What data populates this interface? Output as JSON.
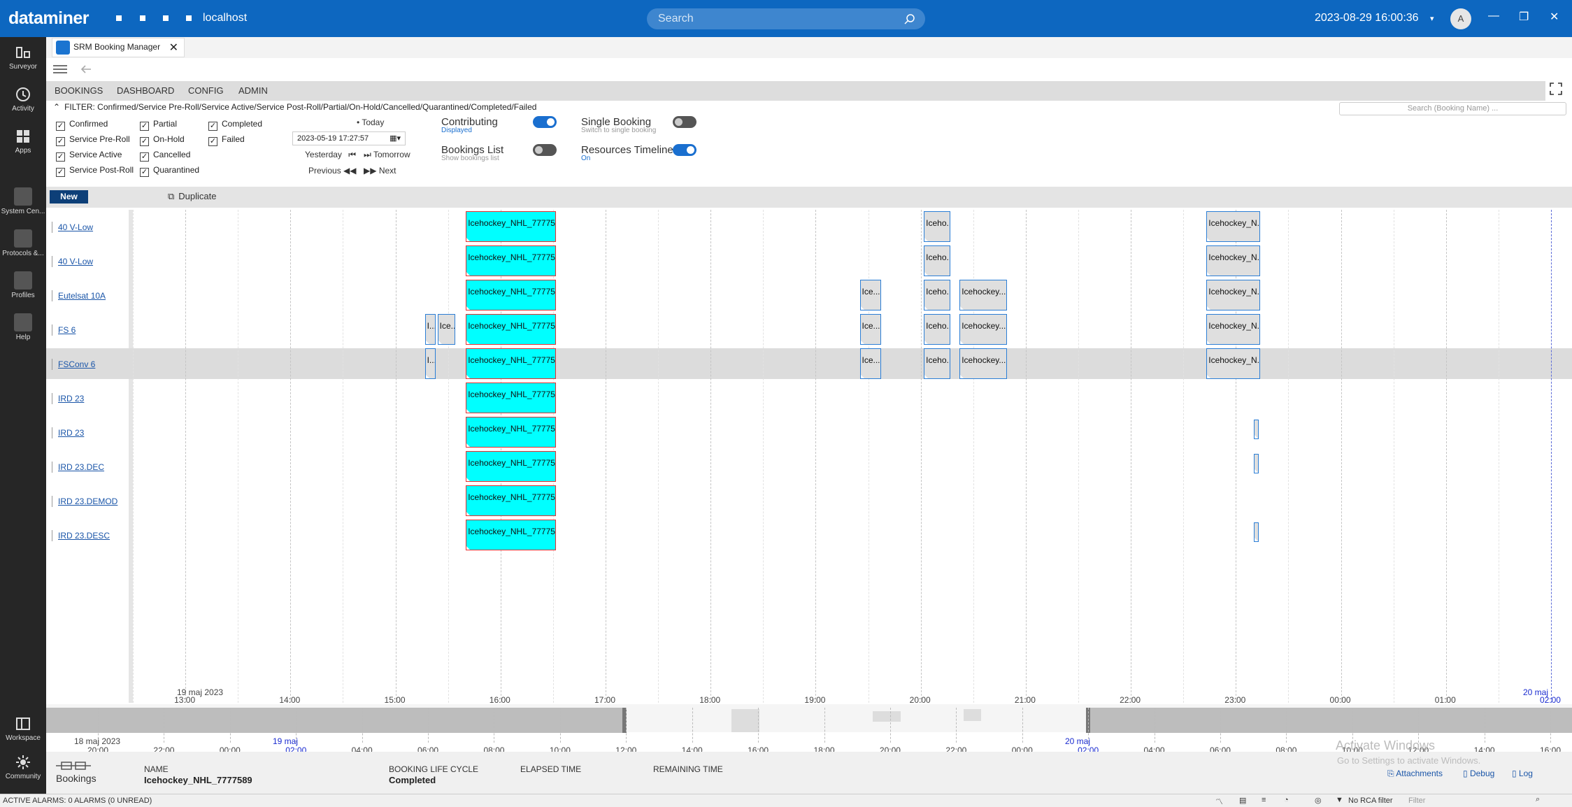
{
  "topbar": {
    "brand": "dataminer",
    "host": "localhost",
    "search_placeholder": "Search",
    "datetime": "2023-08-29 16:00:36",
    "avatar": "A"
  },
  "nav": [
    {
      "label": "Surveyor"
    },
    {
      "label": "Activity"
    },
    {
      "label": "Apps"
    },
    {
      "label": "System Cen..."
    },
    {
      "label": "Protocols &..."
    },
    {
      "label": "Profiles"
    },
    {
      "label": "Help"
    },
    {
      "label": "Workspace"
    },
    {
      "label": "Community"
    }
  ],
  "app_tab": {
    "title": "SRM Booking Manager"
  },
  "tabs": [
    "BOOKINGS",
    "DASHBOARD",
    "CONFIG",
    "ADMIN"
  ],
  "filter": {
    "text": "FILTER: Confirmed/Service Pre-Roll/Service Active/Service Post-Roll/Partial/On-Hold/Cancelled/Quarantined/Completed/Failed",
    "search_placeholder": "Search (Booking Name) ..."
  },
  "checkboxes": [
    {
      "label": "Confirmed",
      "checked": true
    },
    {
      "label": "Service Pre-Roll",
      "checked": true
    },
    {
      "label": "Service Active",
      "checked": true
    },
    {
      "label": "Service Post-Roll",
      "checked": true
    },
    {
      "label": "Partial",
      "checked": true
    },
    {
      "label": "On-Hold",
      "checked": true
    },
    {
      "label": "Cancelled",
      "checked": true
    },
    {
      "label": "Quarantined",
      "checked": true
    },
    {
      "label": "Completed",
      "checked": true
    },
    {
      "label": "Failed",
      "checked": true
    }
  ],
  "date_nav": {
    "today": "Today",
    "date": "2023-05-19 17:27:57",
    "yesterday": "Yesterday",
    "tomorrow": "Tomorrow",
    "previous": "Previous",
    "next": "Next"
  },
  "toggles": {
    "contributing": {
      "label": "Contributing",
      "sub": "Displayed",
      "on": true
    },
    "single_booking": {
      "label": "Single Booking",
      "sub": "Switch to single booking",
      "on": false
    },
    "bookings_list": {
      "label": "Bookings List",
      "sub": "Show bookings list",
      "on": false
    },
    "resources_timeline": {
      "label": "Resources Timeline",
      "sub": "On",
      "on": true
    }
  },
  "actions": {
    "new": "New",
    "duplicate": "Duplicate"
  },
  "resources": [
    "40 V-Low",
    "40 V-Low",
    "Eutelsat 10A",
    "FS 6",
    "FSConv 6",
    "IRD 23",
    "IRD 23",
    "IRD 23.DEC",
    "IRD 23.DEMOD",
    "IRD 23.DESC"
  ],
  "blocks": [
    {
      "row": 0,
      "s": 15.67,
      "e": 16.53,
      "label": "Icehockey_NHL_77775...",
      "kind": "cy"
    },
    {
      "row": 0,
      "s": 20.03,
      "e": 20.28,
      "label": "Iceho...",
      "kind": "gr"
    },
    {
      "row": 0,
      "s": 22.72,
      "e": 23.23,
      "label": "Icehockey_N...",
      "kind": "gr"
    },
    {
      "row": 1,
      "s": 15.67,
      "e": 16.53,
      "label": "Icehockey_NHL_77775...",
      "kind": "cy"
    },
    {
      "row": 1,
      "s": 20.03,
      "e": 20.28,
      "label": "Iceho...",
      "kind": "gr"
    },
    {
      "row": 1,
      "s": 22.72,
      "e": 23.23,
      "label": "Icehockey_N...",
      "kind": "gr"
    },
    {
      "row": 2,
      "s": 15.67,
      "e": 16.53,
      "label": "Icehockey_NHL_77775...",
      "kind": "cy"
    },
    {
      "row": 2,
      "s": 19.42,
      "e": 19.62,
      "label": "Ice...",
      "kind": "gr"
    },
    {
      "row": 2,
      "s": 20.03,
      "e": 20.28,
      "label": "Iceho...",
      "kind": "gr"
    },
    {
      "row": 2,
      "s": 20.37,
      "e": 20.82,
      "label": "Icehockey...",
      "kind": "gr"
    },
    {
      "row": 2,
      "s": 22.72,
      "e": 23.23,
      "label": "Icehockey_N...",
      "kind": "gr"
    },
    {
      "row": 3,
      "s": 15.28,
      "e": 15.38,
      "label": "I...",
      "kind": "gr"
    },
    {
      "row": 3,
      "s": 15.4,
      "e": 15.57,
      "label": "Ice...",
      "kind": "gr"
    },
    {
      "row": 3,
      "s": 15.67,
      "e": 16.53,
      "label": "Icehockey_NHL_77775...",
      "kind": "cy"
    },
    {
      "row": 3,
      "s": 19.42,
      "e": 19.62,
      "label": "Ice...",
      "kind": "gr"
    },
    {
      "row": 3,
      "s": 20.03,
      "e": 20.28,
      "label": "Iceho...",
      "kind": "gr"
    },
    {
      "row": 3,
      "s": 20.37,
      "e": 20.82,
      "label": "Icehockey...",
      "kind": "gr"
    },
    {
      "row": 3,
      "s": 22.72,
      "e": 23.23,
      "label": "Icehockey_N...",
      "kind": "gr"
    },
    {
      "row": 4,
      "s": 15.28,
      "e": 15.38,
      "label": "I...",
      "kind": "gr"
    },
    {
      "row": 4,
      "s": 15.67,
      "e": 16.53,
      "label": "Icehockey_NHL_77775...",
      "kind": "cy"
    },
    {
      "row": 4,
      "s": 19.42,
      "e": 19.62,
      "label": "Ice...",
      "kind": "gr"
    },
    {
      "row": 4,
      "s": 20.03,
      "e": 20.28,
      "label": "Iceho...",
      "kind": "gr"
    },
    {
      "row": 4,
      "s": 20.37,
      "e": 20.82,
      "label": "Icehockey...",
      "kind": "gr"
    },
    {
      "row": 4,
      "s": 22.72,
      "e": 23.23,
      "label": "Icehockey_N...",
      "kind": "gr"
    },
    {
      "row": 5,
      "s": 15.67,
      "e": 16.53,
      "label": "Icehockey_NHL_77775...",
      "kind": "cy"
    },
    {
      "row": 6,
      "s": 15.67,
      "e": 16.53,
      "label": "Icehockey_NHL_77775...",
      "kind": "cy"
    },
    {
      "row": 6,
      "s": 23.17,
      "e": 23.22,
      "label": "",
      "kind": "sm"
    },
    {
      "row": 7,
      "s": 15.67,
      "e": 16.53,
      "label": "Icehockey_NHL_77775...",
      "kind": "cy"
    },
    {
      "row": 7,
      "s": 23.17,
      "e": 23.22,
      "label": "",
      "kind": "sm"
    },
    {
      "row": 8,
      "s": 15.67,
      "e": 16.53,
      "label": "Icehockey_NHL_77775...",
      "kind": "cy"
    },
    {
      "row": 9,
      "s": 15.67,
      "e": 16.53,
      "label": "Icehockey_NHL_77775...",
      "kind": "cy"
    },
    {
      "row": 9,
      "s": 23.17,
      "e": 23.22,
      "label": "",
      "kind": "sm"
    }
  ],
  "highlight_row": 4,
  "axis": {
    "date_start": "19 maj 2023",
    "date_end": "20 maj",
    "ticks": [
      "13:00",
      "14:00",
      "15:00",
      "16:00",
      "17:00",
      "18:00",
      "19:00",
      "20:00",
      "21:00",
      "22:00",
      "23:00",
      "00:00",
      "01:00",
      "02:00"
    ]
  },
  "overview_axis": {
    "date_start": "18 maj 2023",
    "mid_date": "19 maj",
    "mid_date2": "20 maj",
    "ticks": [
      "20:00",
      "22:00",
      "00:00",
      "02:00",
      "04:00",
      "06:00",
      "08:00",
      "10:00",
      "12:00",
      "14:00",
      "16:00",
      "18:00",
      "20:00",
      "22:00",
      "00:00",
      "02:00",
      "04:00",
      "06:00",
      "08:00",
      "10:00",
      "12:00",
      "14:00",
      "16:00"
    ]
  },
  "footer": {
    "bookings": "Bookings",
    "name_label": "NAME",
    "name": "Icehockey_NHL_7777589",
    "lifecycle_label": "BOOKING LIFE CYCLE",
    "lifecycle": "Completed",
    "elapsed_label": "ELAPSED TIME",
    "remaining_label": "REMAINING TIME",
    "attachments": "Attachments",
    "debug": "Debug",
    "log": "Log"
  },
  "watermark": {
    "line1": "Activate Windows",
    "line2": "Go to Settings to activate Windows."
  },
  "status": {
    "alarms": "ACTIVE ALARMS: 0 ALARMS (0 UNREAD)",
    "rca": "No RCA filter",
    "filter_placeholder": "Filter"
  }
}
